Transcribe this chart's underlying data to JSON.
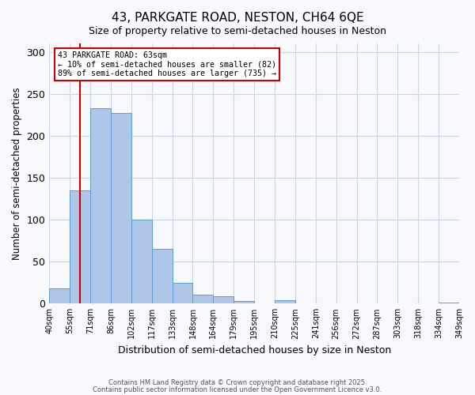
{
  "title": "43, PARKGATE ROAD, NESTON, CH64 6QE",
  "subtitle": "Size of property relative to semi-detached houses in Neston",
  "xlabel": "Distribution of semi-detached houses by size in Neston",
  "ylabel": "Number of semi-detached properties",
  "bin_labels": [
    "40sqm",
    "55sqm",
    "71sqm",
    "86sqm",
    "102sqm",
    "117sqm",
    "133sqm",
    "148sqm",
    "164sqm",
    "179sqm",
    "195sqm",
    "210sqm",
    "225sqm",
    "241sqm",
    "256sqm",
    "272sqm",
    "287sqm",
    "303sqm",
    "318sqm",
    "334sqm",
    "349sqm"
  ],
  "bin_edges": [
    40,
    55,
    71,
    86,
    102,
    117,
    133,
    148,
    164,
    179,
    195,
    210,
    225,
    241,
    256,
    272,
    287,
    303,
    318,
    334,
    349
  ],
  "bar_heights": [
    18,
    135,
    233,
    227,
    100,
    65,
    25,
    11,
    9,
    3,
    0,
    4,
    0,
    0,
    0,
    0,
    0,
    0,
    0,
    1
  ],
  "bar_color": "#aec6e8",
  "bar_edge_color": "#5a9fd4",
  "property_value": 63,
  "vline_color": "#cc0000",
  "annotation_line1": "43 PARKGATE ROAD: 63sqm",
  "annotation_line2": "← 10% of semi-detached houses are smaller (82)",
  "annotation_line3": "89% of semi-detached houses are larger (735) →",
  "annotation_box_color": "#cc0000",
  "ylim": [
    0,
    310
  ],
  "yticks": [
    0,
    50,
    100,
    150,
    200,
    250,
    300
  ],
  "footer1": "Contains HM Land Registry data © Crown copyright and database right 2025.",
  "footer2": "Contains public sector information licensed under the Open Government Licence v3.0.",
  "bg_color": "#f7f9fc",
  "grid_color": "#c8d8e8"
}
